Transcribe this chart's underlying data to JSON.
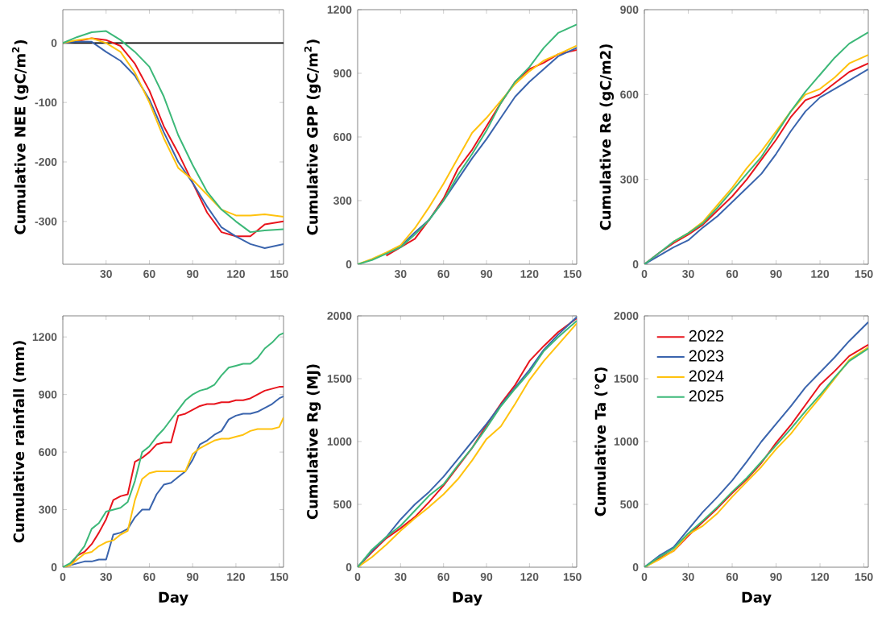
{
  "chart_data": [
    {
      "type": "line",
      "ylabel": "Cumulative NEE (gC/m$^{2}$)",
      "x": [
        0,
        10,
        20,
        30,
        40,
        50,
        60,
        70,
        80,
        90,
        100,
        110,
        120,
        130,
        140,
        153
      ],
      "xlim": [
        0,
        153
      ],
      "ylim": [
        -372,
        56
      ],
      "xticks": [
        30,
        60,
        90,
        120,
        150
      ],
      "yticks": [
        -300,
        -200,
        -100,
        0
      ],
      "ref_lines": [
        {
          "axis": "y",
          "value": 0,
          "color": "#000000"
        }
      ],
      "series": [
        {
          "color": "#e8141c",
          "values": [
            0,
            3,
            8,
            5,
            -5,
            -35,
            -80,
            -140,
            -185,
            -235,
            -285,
            -318,
            -325,
            -325,
            -305,
            -300
          ]
        },
        {
          "color": "#3a64ad",
          "values": [
            0,
            2,
            2,
            -15,
            -30,
            -55,
            -95,
            -150,
            -200,
            -235,
            -275,
            -310,
            -325,
            -338,
            -345,
            -338
          ]
        },
        {
          "color": "#ffc20e",
          "values": [
            0,
            5,
            8,
            0,
            -15,
            -50,
            -100,
            -160,
            -210,
            -230,
            -255,
            -280,
            -290,
            -290,
            -288,
            -292
          ]
        },
        {
          "color": "#3cb878",
          "values": [
            0,
            10,
            18,
            20,
            5,
            -15,
            -40,
            -90,
            -155,
            -205,
            -250,
            -280,
            -300,
            -318,
            -315,
            -313
          ]
        }
      ]
    },
    {
      "type": "line",
      "ylabel": "Cumulative GPP (gC/m$^{2}$)",
      "x": [
        0,
        10,
        20,
        30,
        40,
        50,
        60,
        70,
        80,
        90,
        100,
        110,
        120,
        130,
        140,
        153
      ],
      "xlim": [
        0,
        153
      ],
      "ylim": [
        0,
        1200
      ],
      "xticks": [
        30,
        60,
        90,
        120,
        150
      ],
      "yticks": [
        0,
        300,
        600,
        900,
        1200
      ],
      "series": [
        {
          "color": "#e8141c",
          "values": [
            null,
            null,
            40,
            80,
            120,
            210,
            310,
            450,
            540,
            650,
            760,
            860,
            920,
            950,
            990,
            1010
          ]
        },
        {
          "color": "#3a64ad",
          "values": [
            null,
            null,
            50,
            85,
            150,
            210,
            300,
            400,
            500,
            590,
            690,
            790,
            860,
            920,
            980,
            1020
          ]
        },
        {
          "color": "#ffc20e",
          "values": [
            0,
            25,
            55,
            90,
            170,
            270,
            380,
            500,
            620,
            690,
            770,
            850,
            910,
            960,
            990,
            1030
          ]
        },
        {
          "color": "#3cb878",
          "values": [
            0,
            20,
            50,
            80,
            140,
            210,
            300,
            420,
            520,
            630,
            760,
            860,
            930,
            1020,
            1090,
            1130
          ]
        }
      ]
    },
    {
      "type": "line",
      "ylabel": "Cumulative Re (gC/m2)",
      "x": [
        0,
        10,
        20,
        30,
        40,
        50,
        60,
        70,
        80,
        90,
        100,
        110,
        120,
        130,
        140,
        153
      ],
      "xlim": [
        0,
        153
      ],
      "ylim": [
        0,
        900
      ],
      "xticks": [
        0,
        30,
        60,
        90,
        120,
        150
      ],
      "yticks": [
        0,
        300,
        600,
        900
      ],
      "series": [
        {
          "color": "#e8141c",
          "values": [
            0,
            40,
            75,
            105,
            140,
            190,
            240,
            300,
            370,
            440,
            520,
            580,
            600,
            640,
            680,
            710
          ]
        },
        {
          "color": "#3a64ad",
          "values": [
            0,
            30,
            60,
            85,
            130,
            170,
            220,
            270,
            320,
            390,
            470,
            540,
            590,
            620,
            650,
            690
          ]
        },
        {
          "color": "#ffc20e",
          "values": [
            null,
            null,
            80,
            110,
            150,
            210,
            270,
            340,
            400,
            470,
            540,
            600,
            620,
            660,
            710,
            740
          ]
        },
        {
          "color": "#3cb878",
          "values": [
            0,
            40,
            80,
            110,
            145,
            200,
            260,
            320,
            380,
            460,
            540,
            610,
            670,
            730,
            780,
            820
          ]
        }
      ]
    },
    {
      "type": "line",
      "ylabel": "Cumulative rainfall (mm)",
      "xlabel": "Day",
      "x": [
        0,
        5,
        10,
        15,
        20,
        25,
        30,
        35,
        40,
        45,
        50,
        55,
        60,
        65,
        70,
        75,
        80,
        85,
        90,
        95,
        100,
        105,
        110,
        115,
        120,
        125,
        130,
        135,
        140,
        145,
        150,
        153
      ],
      "xlim": [
        0,
        153
      ],
      "ylim": [
        0,
        1310
      ],
      "xticks": [
        0,
        30,
        60,
        90,
        120,
        150
      ],
      "yticks": [
        0,
        300,
        600,
        900,
        1200
      ],
      "series": [
        {
          "color": "#e8141c",
          "values": [
            0,
            10,
            60,
            80,
            120,
            180,
            250,
            350,
            370,
            380,
            550,
            570,
            600,
            640,
            650,
            650,
            790,
            800,
            820,
            840,
            850,
            850,
            860,
            860,
            870,
            870,
            880,
            900,
            920,
            930,
            940,
            940
          ]
        },
        {
          "color": "#3a64ad",
          "values": [
            0,
            10,
            20,
            30,
            30,
            40,
            40,
            170,
            180,
            200,
            260,
            300,
            300,
            380,
            430,
            440,
            470,
            500,
            560,
            640,
            660,
            690,
            710,
            770,
            790,
            800,
            800,
            810,
            830,
            850,
            880,
            890
          ]
        },
        {
          "color": "#ffc20e",
          "values": [
            0,
            10,
            40,
            70,
            80,
            110,
            130,
            140,
            170,
            190,
            350,
            460,
            490,
            500,
            500,
            500,
            500,
            500,
            590,
            620,
            640,
            660,
            670,
            670,
            680,
            690,
            710,
            720,
            720,
            720,
            730,
            780
          ]
        },
        {
          "color": "#3cb878",
          "values": [
            0,
            20,
            60,
            110,
            200,
            230,
            290,
            300,
            310,
            340,
            450,
            600,
            630,
            680,
            720,
            770,
            820,
            870,
            900,
            920,
            930,
            950,
            1000,
            1040,
            1050,
            1060,
            1060,
            1090,
            1140,
            1170,
            1210,
            1220
          ]
        }
      ]
    },
    {
      "type": "line",
      "ylabel": "Cumulative Rg (MJ)",
      "xlabel": "Day",
      "x": [
        0,
        10,
        20,
        30,
        40,
        50,
        60,
        70,
        80,
        90,
        100,
        110,
        120,
        130,
        140,
        153
      ],
      "xlim": [
        0,
        153
      ],
      "ylim": [
        0,
        2000
      ],
      "xticks": [
        0,
        30,
        60,
        90,
        120,
        150
      ],
      "yticks": [
        0,
        500,
        1000,
        1500,
        2000
      ],
      "series": [
        {
          "color": "#e8141c",
          "values": [
            0,
            120,
            230,
            310,
            400,
            520,
            650,
            800,
            950,
            1130,
            1300,
            1450,
            1640,
            1760,
            1870,
            1980
          ]
        },
        {
          "color": "#3a64ad",
          "values": [
            0,
            130,
            240,
            380,
            500,
            600,
            720,
            860,
            1000,
            1140,
            1290,
            1430,
            1570,
            1730,
            1850,
            1990
          ]
        },
        {
          "color": "#ffc20e",
          "values": [
            0,
            80,
            180,
            290,
            390,
            480,
            580,
            700,
            850,
            1020,
            1120,
            1300,
            1490,
            1640,
            1770,
            1940
          ]
        },
        {
          "color": "#3cb878",
          "values": [
            0,
            140,
            240,
            330,
            450,
            570,
            660,
            810,
            950,
            1110,
            1280,
            1420,
            1550,
            1720,
            1830,
            1960
          ]
        }
      ]
    },
    {
      "type": "line",
      "ylabel": "Cumulative Ta (℃)",
      "xlabel": "Day",
      "x": [
        0,
        10,
        20,
        30,
        40,
        50,
        60,
        70,
        80,
        90,
        100,
        110,
        120,
        130,
        140,
        153
      ],
      "xlim": [
        0,
        153
      ],
      "ylim": [
        0,
        2000
      ],
      "xticks": [
        0,
        30,
        60,
        90,
        120,
        150
      ],
      "yticks": [
        0,
        500,
        1000,
        1500,
        2000
      ],
      "legend": "top left",
      "series": [
        {
          "name": "2022",
          "color": "#e8141c",
          "values": [
            0,
            70,
            130,
            250,
            360,
            470,
            590,
            700,
            830,
            990,
            1130,
            1290,
            1450,
            1560,
            1680,
            1770
          ]
        },
        {
          "name": "2023",
          "color": "#3a64ad",
          "values": [
            0,
            90,
            160,
            300,
            440,
            560,
            690,
            840,
            1000,
            1140,
            1280,
            1430,
            1550,
            1670,
            1800,
            1950
          ]
        },
        {
          "name": "2024",
          "color": "#ffc20e",
          "values": [
            0,
            60,
            130,
            260,
            330,
            430,
            560,
            680,
            800,
            940,
            1060,
            1210,
            1350,
            1500,
            1650,
            1750
          ]
        },
        {
          "name": "2025",
          "color": "#3cb878",
          "values": [
            0,
            80,
            150,
            270,
            370,
            480,
            600,
            710,
            840,
            970,
            1100,
            1240,
            1370,
            1510,
            1640,
            1740
          ]
        }
      ]
    }
  ]
}
